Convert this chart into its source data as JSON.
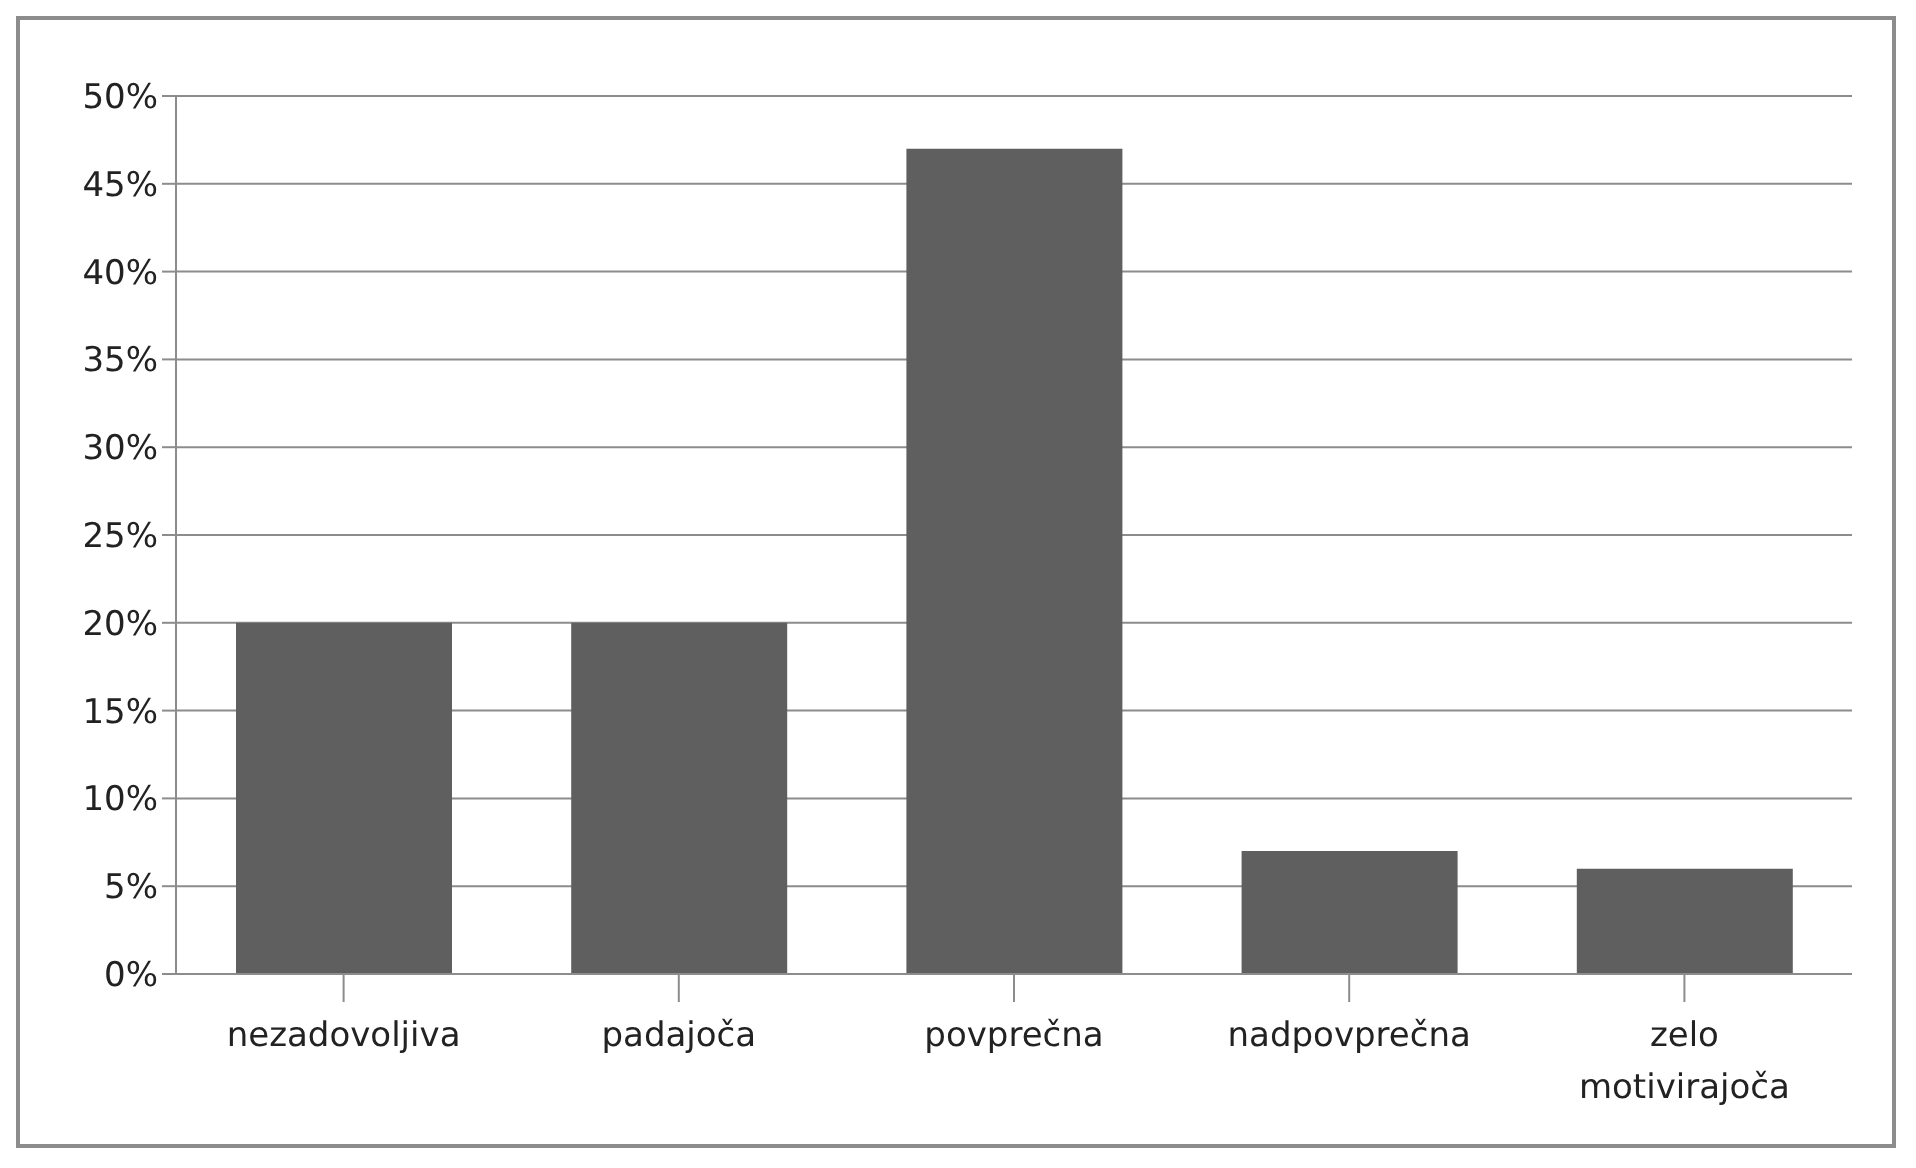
{
  "chart_data": {
    "type": "bar",
    "categories": [
      "nezadovoljiva",
      "padajoča",
      "povprečna",
      "nadpovprečna",
      "zelo motivirajoča"
    ],
    "values": [
      20,
      20,
      47,
      7,
      6
    ],
    "color": "#5f5f5f",
    "ylim": [
      0,
      50
    ],
    "yticks": [
      {
        "value": 0,
        "label": "0%"
      },
      {
        "value": 5,
        "label": "5%"
      },
      {
        "value": 10,
        "label": "10%"
      },
      {
        "value": 15,
        "label": "15%"
      },
      {
        "value": 20,
        "label": "20%"
      },
      {
        "value": 25,
        "label": "25%"
      },
      {
        "value": 30,
        "label": "30%"
      },
      {
        "value": 35,
        "label": "35%"
      },
      {
        "value": 40,
        "label": "40%"
      },
      {
        "value": 45,
        "label": "45%"
      },
      {
        "value": 50,
        "label": "50%"
      }
    ],
    "grid": "y"
  }
}
